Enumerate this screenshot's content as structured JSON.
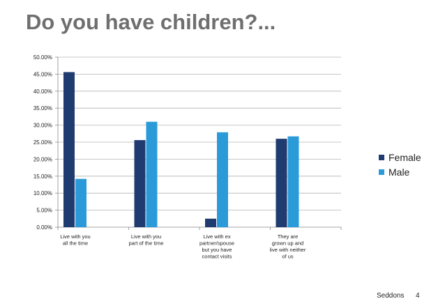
{
  "slide": {
    "title": "Do you have children?...",
    "footer_name": "Seddons",
    "page_number": "4"
  },
  "colors": {
    "female": "#1f3b6f",
    "male": "#2a9bd8",
    "grid": "#b5b5b5",
    "axis": "#888888"
  },
  "chart_data": {
    "type": "bar",
    "title": "",
    "xlabel": "",
    "ylabel": "",
    "ylim": [
      0,
      50
    ],
    "ytick_step": 5,
    "ytick_labels": [
      "0.00%",
      "5.00%",
      "10.00%",
      "15.00%",
      "20.00%",
      "25.00%",
      "30.00%",
      "35.00%",
      "40.00%",
      "45.00%",
      "50.00%"
    ],
    "categories": [
      [
        "Live with you",
        "all the time"
      ],
      [
        "Live with you",
        "part of the time"
      ],
      [
        "Live with ex",
        "partner/spouse",
        "but you have",
        "contact visits"
      ],
      [
        "They are",
        "grown up and",
        "live with neither",
        "of us"
      ]
    ],
    "series": [
      {
        "name": "Female",
        "values": [
          45.6,
          25.6,
          2.5,
          26.0
        ]
      },
      {
        "name": "Male",
        "values": [
          14.2,
          31.0,
          27.9,
          26.7
        ]
      }
    ],
    "legend_position": "right"
  }
}
